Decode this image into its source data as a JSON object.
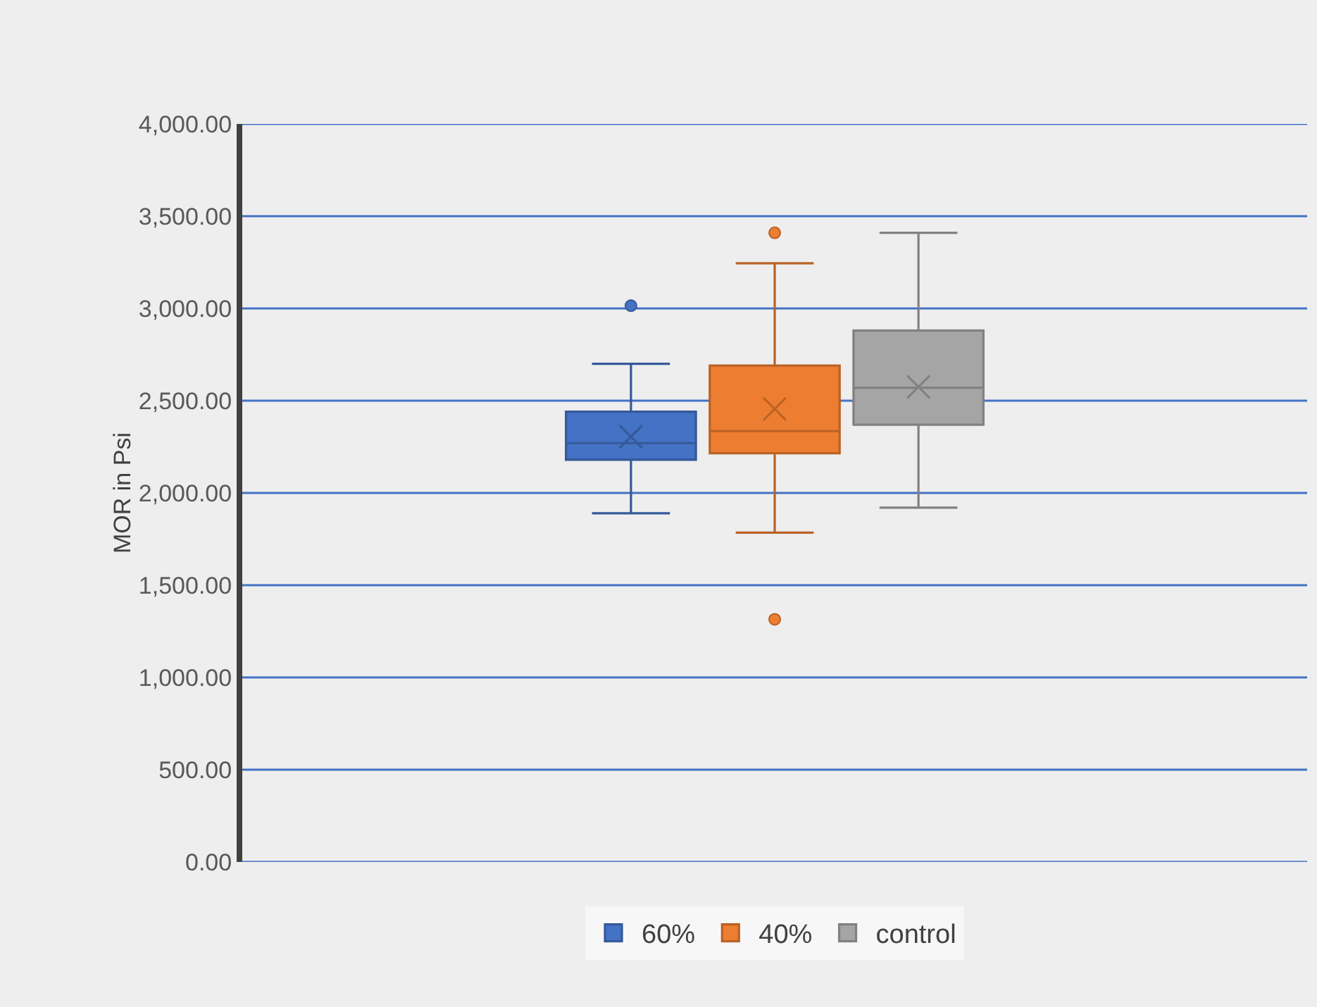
{
  "chart_data": {
    "type": "box",
    "ylabel": "MOR in Psi",
    "categories": [
      null
    ],
    "ylim": [
      0,
      4000
    ],
    "yticks": [
      {
        "value": 0,
        "label": "0.00"
      },
      {
        "value": 500,
        "label": "500.00"
      },
      {
        "value": 1000,
        "label": "1,000.00"
      },
      {
        "value": 1500,
        "label": "1,500.00"
      },
      {
        "value": 2000,
        "label": "2,000.00"
      },
      {
        "value": 2500,
        "label": "2,500.00"
      },
      {
        "value": 3000,
        "label": "3,000.00"
      },
      {
        "value": 3500,
        "label": "3,500.00"
      },
      {
        "value": 4000,
        "label": "4,000.00"
      }
    ],
    "grid": "y",
    "legend": "bottom",
    "marker": "circle",
    "series": [
      {
        "name": "60%",
        "color": "#4472c4",
        "boxes": [
          {
            "low": 1890,
            "q1": 2180,
            "median": 2270,
            "q3": 2440,
            "high": 2700,
            "mean": 2305,
            "outliers": [
              3015
            ]
          }
        ]
      },
      {
        "name": "40%",
        "color": "#ed7d31",
        "boxes": [
          {
            "low": 1785,
            "q1": 2215,
            "median": 2335,
            "q3": 2690,
            "high": 3245,
            "mean": 2455,
            "outliers": [
              3410,
              1315
            ]
          }
        ]
      },
      {
        "name": "control",
        "color": "#a5a5a5",
        "boxes": [
          {
            "low": 1920,
            "q1": 2370,
            "median": 2570,
            "q3": 2880,
            "high": 3410,
            "mean": 2575
          }
        ]
      }
    ]
  }
}
